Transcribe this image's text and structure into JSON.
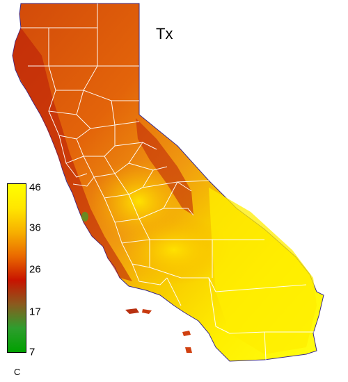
{
  "map": {
    "title": "Tx",
    "region": "California",
    "county_boundary_color": "#ffffff"
  },
  "legend": {
    "unit": "C",
    "ticks": [
      "46",
      "36",
      "26",
      "17",
      "7"
    ],
    "gradient": [
      "#ffff00",
      "#ffe600",
      "#f7b000",
      "#ea6a00",
      "#c81400",
      "#8b5a1e",
      "#2e9e2e",
      "#00a000"
    ]
  }
}
